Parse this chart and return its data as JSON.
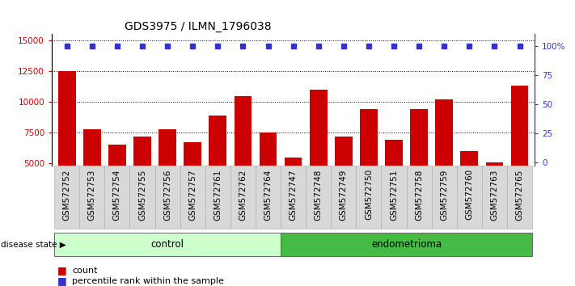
{
  "title": "GDS3975 / ILMN_1796038",
  "samples": [
    "GSM572752",
    "GSM572753",
    "GSM572754",
    "GSM572755",
    "GSM572756",
    "GSM572757",
    "GSM572761",
    "GSM572762",
    "GSM572764",
    "GSM572747",
    "GSM572748",
    "GSM572749",
    "GSM572750",
    "GSM572751",
    "GSM572758",
    "GSM572759",
    "GSM572760",
    "GSM572763",
    "GSM572765"
  ],
  "counts": [
    12500,
    7800,
    6500,
    7200,
    7800,
    6700,
    8900,
    10500,
    7500,
    5500,
    11000,
    7200,
    9400,
    6900,
    9400,
    10200,
    6000,
    5100,
    11300
  ],
  "percentile": [
    100,
    100,
    100,
    100,
    100,
    100,
    100,
    100,
    100,
    100,
    100,
    100,
    100,
    100,
    100,
    100,
    100,
    100,
    100
  ],
  "bar_color": "#cc0000",
  "dot_color": "#3333cc",
  "ylim_left": [
    4800,
    15500
  ],
  "ylim_right": [
    -3,
    110
  ],
  "yticks_left": [
    5000,
    7500,
    10000,
    12500,
    15000
  ],
  "yticks_right": [
    0,
    25,
    50,
    75,
    100
  ],
  "grid_values": [
    7500,
    10000,
    12500,
    15000
  ],
  "n_control": 9,
  "n_endometrioma": 10,
  "control_color": "#ccffcc",
  "endo_color": "#44bb44",
  "tick_bg_color": "#d8d8d8",
  "background_color": "#ffffff",
  "title_fontsize": 10,
  "tick_fontsize": 7.5,
  "legend_fontsize": 8
}
